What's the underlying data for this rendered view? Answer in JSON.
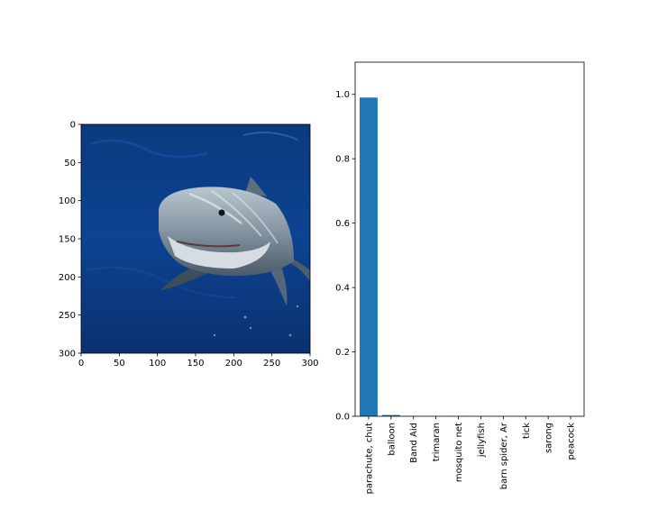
{
  "image_panel": {
    "xlim": [
      0,
      300
    ],
    "ylim": [
      300,
      0
    ],
    "x_ticks": [
      0,
      50,
      100,
      150,
      200,
      250,
      300
    ],
    "y_ticks": [
      0,
      50,
      100,
      150,
      200,
      250,
      300
    ],
    "water_color": "#0c3e86",
    "shark_color": "#9fb0bd"
  },
  "chart_data": {
    "type": "bar",
    "categories": [
      "parachute, chut",
      "balloon",
      "Band Aid",
      "trimaran",
      "mosquito net",
      "jellyfish",
      "barn spider, Ar",
      "tick",
      "sarong",
      "peacock"
    ],
    "values": [
      0.99,
      0.004,
      0.0008,
      0.0005,
      0.0004,
      0.0003,
      0.0002,
      0.0002,
      0.0001,
      0.0001
    ],
    "title": "",
    "xlabel": "",
    "ylabel": "",
    "ylim": [
      0,
      1.1
    ],
    "y_ticks": [
      0.0,
      0.2,
      0.4,
      0.6,
      0.8,
      1.0
    ],
    "bar_color": "#1f77b4",
    "grid": false,
    "legend": "none"
  }
}
